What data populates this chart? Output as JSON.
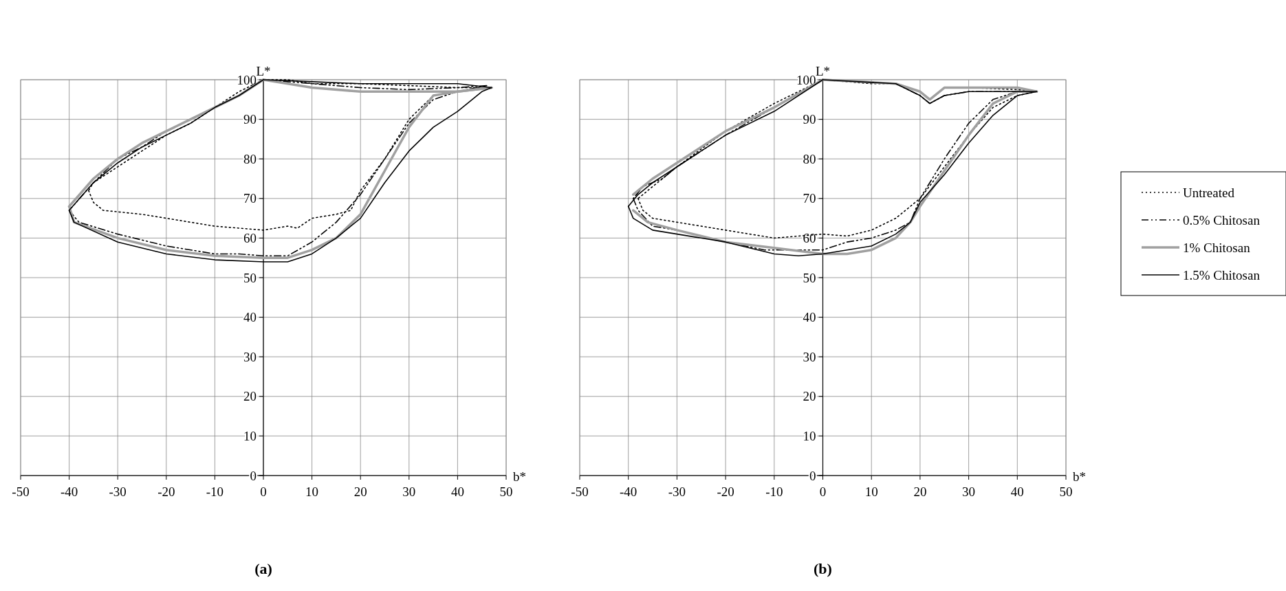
{
  "chart_data": [
    {
      "type": "line",
      "title": "(a)",
      "xlabel": "b*",
      "ylabel": "L*",
      "xlim": [
        -50,
        50
      ],
      "ylim": [
        0,
        100
      ],
      "xticks": [
        -50,
        -40,
        -30,
        -20,
        -10,
        0,
        10,
        20,
        30,
        40,
        50
      ],
      "yticks": [
        0,
        10,
        20,
        30,
        40,
        50,
        60,
        70,
        80,
        90,
        100
      ],
      "grid": true,
      "legend": false,
      "series": [
        {
          "color": "#000000",
          "line_style": "dotted",
          "x": [
            0,
            -5,
            -10,
            -15,
            -20,
            -25,
            -30,
            -35,
            -36
          ],
          "values": [
            100,
            97,
            93,
            89,
            86,
            82,
            78,
            74,
            72
          ]
        },
        {
          "color": "#000000",
          "line_style": "dotted",
          "x": [
            -36,
            -35,
            -33,
            -25,
            -20,
            -15,
            -10,
            -5,
            0,
            5,
            7,
            10,
            15,
            18,
            20,
            25,
            30,
            35,
            40,
            47
          ],
          "values": [
            72,
            69,
            67,
            66,
            65,
            64,
            63,
            62.5,
            62,
            63,
            62.5,
            65,
            66,
            67,
            72,
            80,
            90,
            96,
            97,
            98
          ]
        },
        {
          "color": "#000000",
          "line_style": "dotted",
          "x": [
            47,
            40,
            30,
            20,
            10,
            5,
            0
          ],
          "values": [
            98,
            98,
            98.5,
            99,
            99,
            100,
            100
          ]
        },
        {
          "color": "#000000",
          "line_style": "dashed",
          "x": [
            0,
            -5,
            -10,
            -15,
            -20,
            -25,
            -30,
            -35,
            -40
          ],
          "values": [
            100,
            96,
            93,
            90,
            87,
            83,
            80,
            74,
            67
          ]
        },
        {
          "color": "#000000",
          "line_style": "dashed",
          "x": [
            -40,
            -38,
            -30,
            -20,
            -10,
            -5,
            0,
            5,
            10,
            15,
            20,
            25,
            30,
            35,
            40,
            46
          ],
          "values": [
            67,
            64,
            61,
            58,
            56,
            56,
            55.5,
            55.5,
            59,
            64,
            71,
            80,
            89,
            95,
            97,
            98.5
          ]
        },
        {
          "color": "#000000",
          "line_style": "dashed",
          "x": [
            46,
            40,
            30,
            20,
            10,
            0
          ],
          "values": [
            98.5,
            98,
            97.5,
            98,
            99,
            100
          ]
        },
        {
          "color": "#a0a0a0",
          "line_style": "solid",
          "x": [
            0,
            -5,
            -10,
            -15,
            -20,
            -25,
            -30,
            -35,
            -40
          ],
          "values": [
            100,
            96,
            93,
            90,
            87,
            84,
            80,
            75,
            68
          ]
        },
        {
          "color": "#a0a0a0",
          "line_style": "solid",
          "x": [
            -40,
            -39,
            -30,
            -20,
            -10,
            0,
            5,
            10,
            15,
            20,
            25,
            30,
            35,
            40,
            47
          ],
          "values": [
            68,
            64,
            60,
            57,
            55.5,
            55,
            55,
            57,
            60,
            66,
            77,
            88,
            96,
            97,
            98
          ]
        },
        {
          "color": "#a0a0a0",
          "line_style": "solid",
          "x": [
            47,
            40,
            30,
            20,
            10,
            0
          ],
          "values": [
            98,
            97,
            97,
            97,
            98,
            100
          ]
        },
        {
          "color": "#000000",
          "line_style": "solid",
          "x": [
            0,
            -5,
            -10,
            -15,
            -20,
            -25,
            -30,
            -35,
            -40
          ],
          "values": [
            100,
            96,
            93,
            89,
            86,
            83,
            79,
            74,
            67
          ]
        },
        {
          "color": "#000000",
          "line_style": "solid",
          "x": [
            -40,
            -39,
            -30,
            -20,
            -10,
            0,
            5,
            10,
            15,
            20,
            25,
            30,
            35,
            40,
            45,
            47
          ],
          "values": [
            67,
            64,
            59,
            56,
            54.5,
            54,
            54,
            56,
            60,
            65,
            74,
            82,
            88,
            92,
            97,
            98
          ]
        },
        {
          "color": "#000000",
          "line_style": "solid",
          "x": [
            47,
            40,
            30,
            20,
            10,
            0
          ],
          "values": [
            98,
            99,
            99,
            99,
            99.5,
            100
          ]
        }
      ]
    },
    {
      "type": "line",
      "title": "(b)",
      "xlabel": "b*",
      "ylabel": "L*",
      "xlim": [
        -50,
        50
      ],
      "ylim": [
        0,
        100
      ],
      "xticks": [
        -50,
        -40,
        -30,
        -20,
        -10,
        0,
        10,
        20,
        30,
        40,
        50
      ],
      "yticks": [
        0,
        10,
        20,
        30,
        40,
        50,
        60,
        70,
        80,
        90,
        100
      ],
      "grid": true,
      "legend": "right",
      "series": [
        {
          "name": "Untreated",
          "color": "#000000",
          "line_style": "dotted",
          "x": [
            0,
            -10,
            -20,
            -30,
            -35,
            -38
          ],
          "values": [
            100,
            94,
            87,
            78,
            73,
            70
          ]
        },
        {
          "color": "#000000",
          "line_style": "dotted",
          "x": [
            -38,
            -37,
            -35,
            -30,
            -20,
            -10,
            0,
            5,
            10,
            15,
            18,
            20,
            25,
            30,
            35,
            40,
            44
          ],
          "values": [
            70,
            67,
            65,
            64,
            62,
            60,
            61,
            60.5,
            62,
            65,
            68,
            70,
            78,
            86,
            93,
            96,
            97
          ]
        },
        {
          "color": "#000000",
          "line_style": "dotted",
          "x": [
            44,
            40,
            30,
            25,
            22,
            20,
            15,
            10,
            0
          ],
          "values": [
            97,
            97.5,
            98,
            98,
            95,
            97,
            99,
            99,
            100
          ]
        },
        {
          "name": "0.5% Chitosan",
          "color": "#000000",
          "line_style": "dashed",
          "x": [
            0,
            -10,
            -20,
            -30,
            -33,
            -37,
            -39
          ],
          "values": [
            100,
            93,
            86,
            78,
            75,
            73,
            70
          ]
        },
        {
          "color": "#000000",
          "line_style": "dashed",
          "x": [
            -39,
            -38,
            -35,
            -30,
            -20,
            -12,
            -5,
            0,
            5,
            10,
            15,
            18,
            20,
            25,
            30,
            35,
            40,
            44
          ],
          "values": [
            70,
            67,
            63,
            62,
            59,
            57,
            57,
            57,
            59,
            60,
            62,
            64,
            70,
            80,
            89,
            95,
            97,
            97
          ]
        },
        {
          "color": "#000000",
          "line_style": "dashed",
          "x": [
            44,
            40,
            30,
            25,
            22,
            20,
            15,
            0
          ],
          "values": [
            97,
            97,
            97,
            96,
            94,
            96,
            99,
            100
          ]
        },
        {
          "name": "1% Chitosan",
          "color": "#a0a0a0",
          "line_style": "solid",
          "x": [
            0,
            -10,
            -20,
            -30,
            -35,
            -39
          ],
          "values": [
            100,
            93,
            87,
            79,
            75,
            71
          ]
        },
        {
          "color": "#a0a0a0",
          "line_style": "solid",
          "x": [
            -39,
            -36,
            -30,
            -20,
            -10,
            0,
            5,
            10,
            15,
            18,
            20,
            25,
            30,
            35,
            40,
            44
          ],
          "values": [
            67,
            64,
            62,
            59,
            57.5,
            56,
            56,
            57,
            60,
            64,
            68,
            77,
            86,
            94,
            97,
            97
          ]
        },
        {
          "color": "#a0a0a0",
          "line_style": "solid",
          "x": [
            44,
            40,
            30,
            25,
            22,
            20,
            15,
            0
          ],
          "values": [
            97,
            98,
            98,
            98,
            95,
            97,
            99,
            100
          ]
        },
        {
          "name": "1.5% Chitosan",
          "color": "#000000",
          "line_style": "solid",
          "x": [
            0,
            -10,
            -20,
            -30,
            -35,
            -38,
            -40
          ],
          "values": [
            100,
            92,
            86,
            78,
            74,
            71,
            68
          ]
        },
        {
          "color": "#000000",
          "line_style": "solid",
          "x": [
            -40,
            -39,
            -35,
            -30,
            -20,
            -10,
            -5,
            0,
            5,
            10,
            15,
            18,
            20,
            25,
            30,
            35,
            40,
            44
          ],
          "values": [
            68,
            65,
            62,
            61,
            59,
            56,
            55.5,
            56,
            57,
            58,
            61,
            64,
            69,
            76,
            84,
            91,
            96,
            97
          ]
        },
        {
          "color": "#000000",
          "line_style": "solid",
          "x": [
            44,
            40,
            30,
            25,
            22,
            20,
            15,
            0
          ],
          "values": [
            97,
            97,
            97,
            96,
            94,
            96,
            99,
            100
          ]
        }
      ]
    }
  ]
}
